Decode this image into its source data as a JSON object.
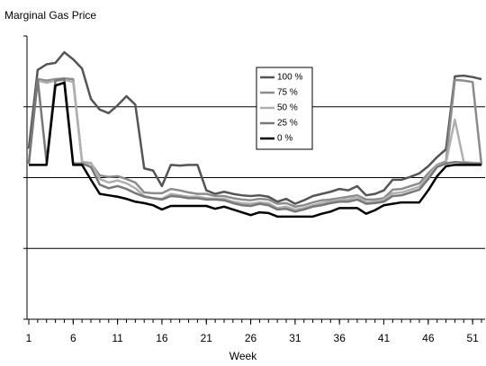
{
  "chart_data": {
    "type": "line",
    "title": "Marginal Gas Price",
    "xlabel": "Week",
    "x": [
      1,
      2,
      3,
      4,
      5,
      6,
      7,
      8,
      9,
      10,
      11,
      12,
      13,
      14,
      15,
      16,
      17,
      18,
      19,
      20,
      21,
      22,
      23,
      24,
      25,
      26,
      27,
      28,
      29,
      30,
      31,
      32,
      33,
      34,
      35,
      36,
      37,
      38,
      39,
      40,
      41,
      42,
      43,
      44,
      45,
      46,
      47,
      48,
      49,
      50,
      51,
      52
    ],
    "xlim": [
      1,
      52
    ],
    "xticks": [
      1,
      6,
      11,
      16,
      21,
      26,
      31,
      36,
      41,
      46,
      51
    ],
    "ylim": [
      0,
      4
    ],
    "yticks": [
      0,
      1,
      2,
      3,
      4
    ],
    "grid": true,
    "series": [
      {
        "name": "100 %",
        "color": "#555555",
        "values": [
          2.41,
          3.52,
          3.6,
          3.62,
          3.77,
          3.67,
          3.54,
          3.11,
          2.96,
          2.91,
          3.02,
          3.15,
          3.03,
          2.13,
          2.1,
          1.88,
          2.18,
          2.17,
          2.18,
          2.18,
          1.82,
          1.77,
          1.8,
          1.77,
          1.75,
          1.74,
          1.75,
          1.73,
          1.66,
          1.7,
          1.63,
          1.68,
          1.74,
          1.77,
          1.8,
          1.84,
          1.82,
          1.88,
          1.75,
          1.77,
          1.82,
          1.97,
          1.97,
          2.01,
          2.06,
          2.16,
          2.29,
          2.4,
          3.43,
          3.44,
          3.42,
          3.39
        ]
      },
      {
        "name": "75 %",
        "color": "#8c8c8c",
        "values": [
          2.2,
          3.39,
          3.37,
          3.39,
          3.4,
          3.39,
          2.22,
          2.2,
          2.03,
          2.01,
          2.02,
          1.98,
          1.93,
          1.79,
          1.78,
          1.78,
          1.84,
          1.82,
          1.79,
          1.77,
          1.77,
          1.74,
          1.74,
          1.71,
          1.69,
          1.68,
          1.7,
          1.69,
          1.63,
          1.64,
          1.59,
          1.61,
          1.65,
          1.68,
          1.69,
          1.71,
          1.73,
          1.75,
          1.69,
          1.69,
          1.71,
          1.83,
          1.84,
          1.88,
          1.92,
          2.06,
          2.18,
          2.23,
          3.38,
          3.37,
          3.35,
          2.18
        ]
      },
      {
        "name": "50 %",
        "color": "#b0b0b0",
        "values": [
          2.2,
          3.37,
          3.34,
          3.37,
          3.38,
          3.35,
          2.22,
          2.21,
          1.98,
          1.93,
          1.96,
          1.92,
          1.85,
          1.74,
          1.71,
          1.7,
          1.77,
          1.75,
          1.73,
          1.73,
          1.71,
          1.7,
          1.7,
          1.66,
          1.64,
          1.63,
          1.65,
          1.64,
          1.57,
          1.59,
          1.55,
          1.57,
          1.61,
          1.64,
          1.66,
          1.69,
          1.69,
          1.73,
          1.65,
          1.66,
          1.69,
          1.78,
          1.79,
          1.83,
          1.87,
          2.02,
          2.17,
          2.21,
          2.82,
          2.22,
          2.21,
          2.2
        ]
      },
      {
        "name": "25 %",
        "color": "#787878",
        "values": [
          2.2,
          3.39,
          2.22,
          3.37,
          3.39,
          2.2,
          2.2,
          2.15,
          1.9,
          1.85,
          1.88,
          1.84,
          1.78,
          1.73,
          1.71,
          1.69,
          1.74,
          1.73,
          1.71,
          1.71,
          1.69,
          1.69,
          1.68,
          1.64,
          1.61,
          1.6,
          1.63,
          1.61,
          1.55,
          1.56,
          1.52,
          1.55,
          1.59,
          1.61,
          1.64,
          1.66,
          1.66,
          1.69,
          1.63,
          1.64,
          1.66,
          1.74,
          1.75,
          1.79,
          1.83,
          1.98,
          2.15,
          2.2,
          2.22,
          2.21,
          2.2,
          2.2
        ]
      },
      {
        "name": "0 %",
        "color": "#000000",
        "values": [
          2.18,
          2.18,
          2.18,
          3.3,
          3.34,
          2.18,
          2.18,
          1.97,
          1.77,
          1.75,
          1.73,
          1.7,
          1.66,
          1.64,
          1.61,
          1.55,
          1.6,
          1.6,
          1.6,
          1.6,
          1.6,
          1.56,
          1.59,
          1.55,
          1.51,
          1.47,
          1.51,
          1.5,
          1.45,
          1.45,
          1.45,
          1.45,
          1.45,
          1.49,
          1.52,
          1.57,
          1.57,
          1.57,
          1.49,
          1.54,
          1.61,
          1.63,
          1.65,
          1.65,
          1.65,
          1.82,
          2.02,
          2.16,
          2.18,
          2.18,
          2.18,
          2.18
        ]
      }
    ]
  }
}
